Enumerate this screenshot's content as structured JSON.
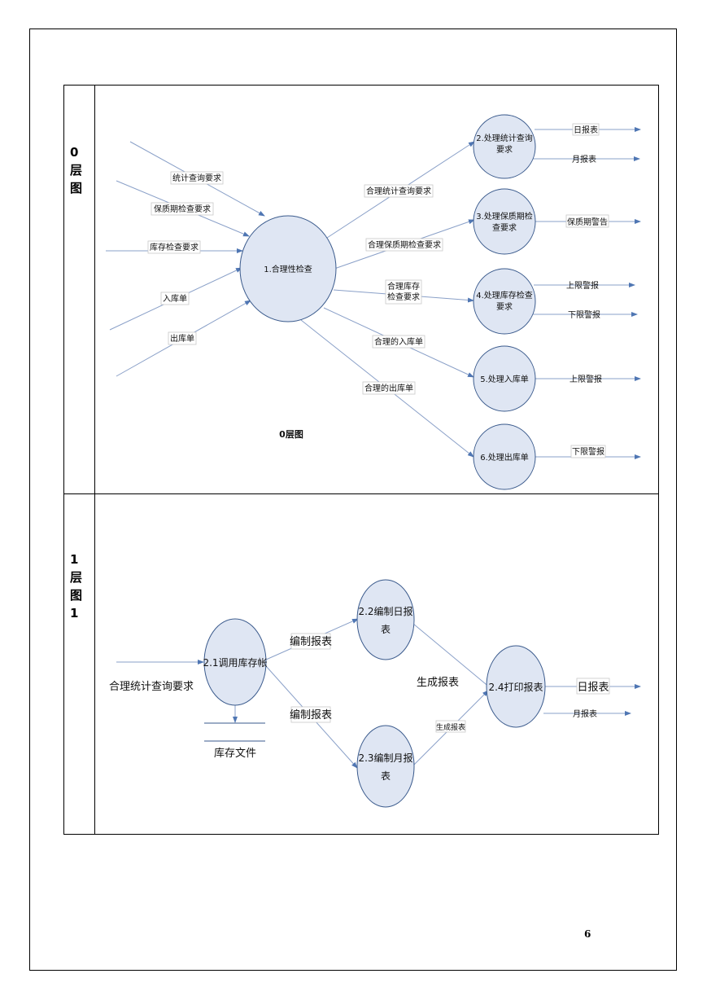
{
  "level0": {
    "side_label": [
      "0",
      "层",
      "图"
    ],
    "caption": "0层图",
    "center": "1.合理性检查",
    "inputs": [
      "统计查询要求",
      "保质期检查要求",
      "库存检查要求",
      "入库单",
      "出库单"
    ],
    "processes": [
      {
        "lines": [
          "2.处理统计查询",
          "要求"
        ],
        "flow": [
          "合理统计查询要求"
        ],
        "outputs": [
          "日报表",
          "月报表"
        ]
      },
      {
        "lines": [
          "3.处理保质期检",
          "查要求"
        ],
        "flow": [
          "合理保质期检查要求"
        ],
        "outputs": [
          "保质期警告"
        ]
      },
      {
        "lines": [
          "4.处理库存检查",
          "要求"
        ],
        "flow": [
          "合理库存",
          "检查要求"
        ],
        "outputs": [
          "上限警报",
          "下限警报"
        ]
      },
      {
        "lines": [
          "5.处理入库单"
        ],
        "flow": [
          "合理的入库单"
        ],
        "outputs": [
          "上限警报"
        ]
      },
      {
        "lines": [
          "6.处理出库单"
        ],
        "flow": [
          "合理的出库单"
        ],
        "outputs": [
          "下限警报"
        ]
      }
    ]
  },
  "level1": {
    "side_label": [
      "1",
      "层",
      "图",
      "1"
    ],
    "input": "合理统计查询要求",
    "p21": [
      "2.1调用库存帐"
    ],
    "p22": [
      "2.2编制日报",
      "表"
    ],
    "p23": [
      "2.3编制月报",
      "表"
    ],
    "p24": [
      "2.4打印报表"
    ],
    "store": "库存文件",
    "flow_upper": "编制报表",
    "flow_lower": "编制报表",
    "gen_upper": "生成报表",
    "gen_lower": "生成报表",
    "out_day": "日报表",
    "out_month": "月报表"
  },
  "page_number": "6"
}
